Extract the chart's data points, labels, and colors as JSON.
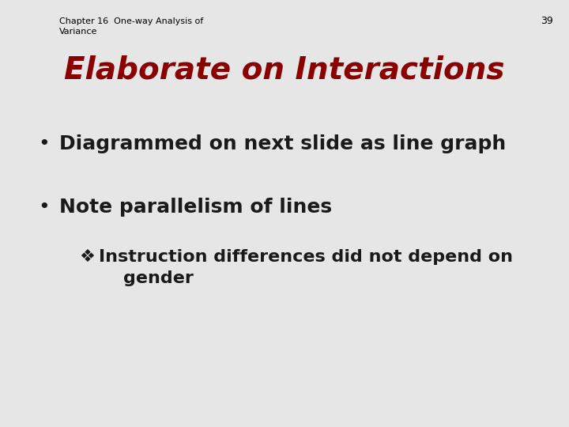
{
  "background_color": "#e6e6e6",
  "slide_number": "39",
  "header_text": "Chapter 16  One-way Analysis of\nVariance",
  "header_fontsize": 8,
  "header_color": "#000000",
  "title": "Elaborate on Interactions",
  "title_color": "#8b0000",
  "title_fontsize": 28,
  "bullet1": "Diagrammed on next slide as line graph",
  "bullet2": "Note parallelism of lines",
  "sub_bullet_line1": "Instruction differences did not depend on",
  "sub_bullet_line2": "    gender",
  "bullet_fontsize": 18,
  "sub_bullet_fontsize": 16,
  "bullet_color": "#1a1a1a",
  "bullet_symbol": "•",
  "sub_symbol": "❖"
}
